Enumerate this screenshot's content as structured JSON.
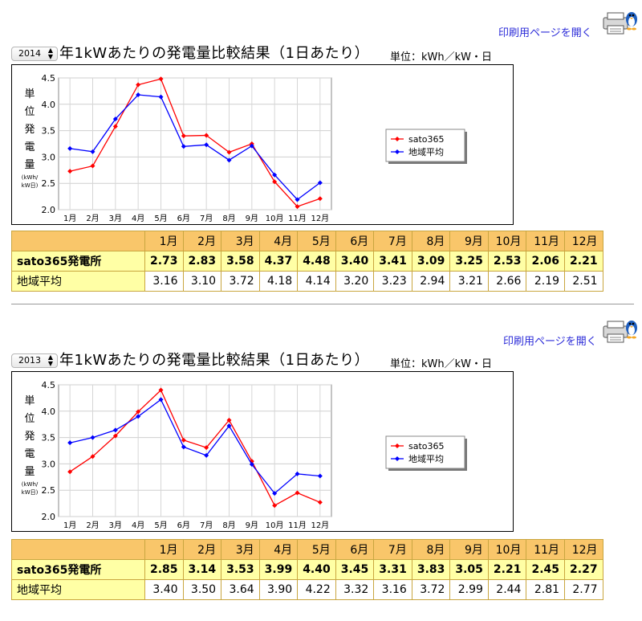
{
  "print_link": "印刷用ページを開く",
  "unit_label": "単位：kWh／kW・日",
  "title_suffix": "年1kWあたりの発電量比較結果（1日あたり）",
  "row_site_label": "sato365発電所",
  "row_avg_label": "地域平均",
  "months": [
    "1月",
    "2月",
    "3月",
    "4月",
    "5月",
    "6月",
    "7月",
    "8月",
    "9月",
    "10月",
    "11月",
    "12月"
  ],
  "yaxis_label_chars": [
    "単",
    "位",
    "発",
    "電",
    "量"
  ],
  "yaxis_unit_lines": [
    "(kWh/",
    "kW日)"
  ],
  "colors": {
    "site": "#ff0000",
    "avg": "#0000ff",
    "header_bg": "#f9c66a",
    "row_bg": "#ffffa5",
    "link": "#2b2bd8"
  },
  "sections": [
    {
      "year": "2014",
      "site_values_text": [
        "2.73",
        "2.83",
        "3.58",
        "4.37",
        "4.48",
        "3.40",
        "3.41",
        "3.09",
        "3.25",
        "2.53",
        "2.06",
        "2.21"
      ],
      "avg_values_text": [
        "3.16",
        "3.10",
        "3.72",
        "4.18",
        "4.14",
        "3.20",
        "3.23",
        "2.94",
        "3.21",
        "2.66",
        "2.19",
        "2.51"
      ]
    },
    {
      "year": "2013",
      "site_values_text": [
        "2.85",
        "3.14",
        "3.53",
        "3.99",
        "4.40",
        "3.45",
        "3.31",
        "3.83",
        "3.05",
        "2.21",
        "2.45",
        "2.27"
      ],
      "avg_values_text": [
        "3.40",
        "3.50",
        "3.64",
        "3.90",
        "4.22",
        "3.32",
        "3.16",
        "3.72",
        "2.99",
        "2.44",
        "2.81",
        "2.77"
      ]
    }
  ],
  "chart_data": [
    {
      "type": "line",
      "categories": [
        "1月",
        "2月",
        "3月",
        "4月",
        "5月",
        "6月",
        "7月",
        "8月",
        "9月",
        "10月",
        "11月",
        "12月"
      ],
      "ylim": [
        2.0,
        4.5
      ],
      "yticks": [
        "2.0",
        "2.5",
        "3.0",
        "3.5",
        "4.0",
        "4.5"
      ],
      "grid": true,
      "legend": "right",
      "series": [
        {
          "name": "sato365",
          "color": "#ff0000",
          "values": [
            2.73,
            2.83,
            3.58,
            4.37,
            4.48,
            3.4,
            3.41,
            3.09,
            3.25,
            2.53,
            2.06,
            2.21
          ]
        },
        {
          "name": "地域平均",
          "color": "#0000ff",
          "values": [
            3.16,
            3.1,
            3.72,
            4.18,
            4.14,
            3.2,
            3.23,
            2.94,
            3.21,
            2.66,
            2.19,
            2.51
          ]
        }
      ]
    },
    {
      "type": "line",
      "categories": [
        "1月",
        "2月",
        "3月",
        "4月",
        "5月",
        "6月",
        "7月",
        "8月",
        "9月",
        "10月",
        "11月",
        "12月"
      ],
      "ylim": [
        2.0,
        4.5
      ],
      "yticks": [
        "2.0",
        "2.5",
        "3.0",
        "3.5",
        "4.0",
        "4.5"
      ],
      "grid": true,
      "legend": "right",
      "series": [
        {
          "name": "sato365",
          "color": "#ff0000",
          "values": [
            2.85,
            3.14,
            3.53,
            3.99,
            4.4,
            3.45,
            3.31,
            3.83,
            3.05,
            2.21,
            2.45,
            2.27
          ]
        },
        {
          "name": "地域平均",
          "color": "#0000ff",
          "values": [
            3.4,
            3.5,
            3.64,
            3.9,
            4.22,
            3.32,
            3.16,
            3.72,
            2.99,
            2.44,
            2.81,
            2.77
          ]
        }
      ]
    }
  ]
}
